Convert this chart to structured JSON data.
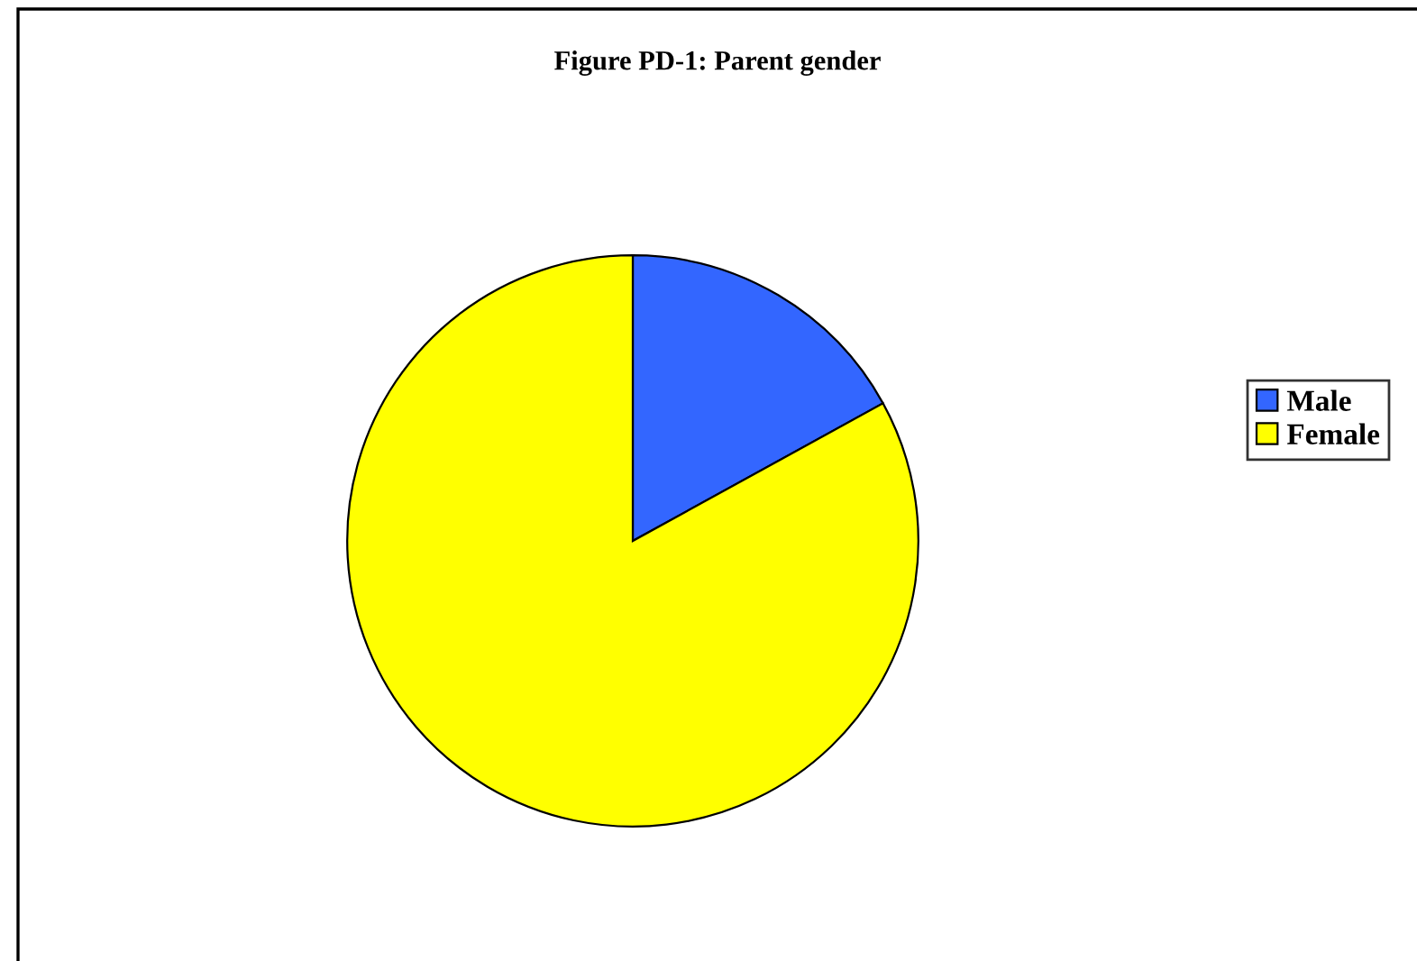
{
  "chart_data": {
    "type": "pie",
    "title": "Figure PD-1: Parent gender",
    "categories": [
      "Male",
      "Female"
    ],
    "values": [
      17,
      83
    ],
    "colors": [
      "#3366ff",
      "#ffff00"
    ],
    "legend": "right"
  }
}
